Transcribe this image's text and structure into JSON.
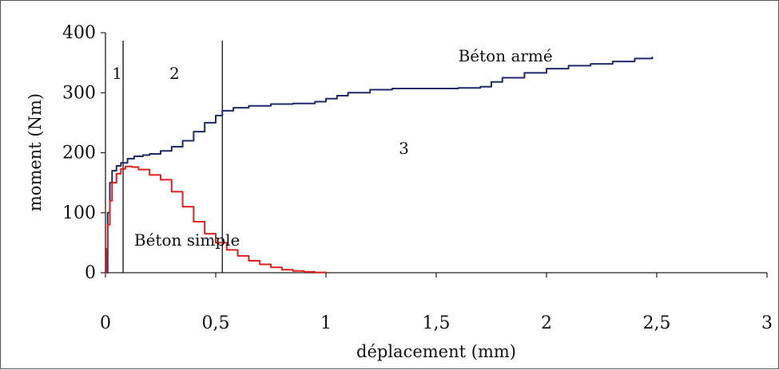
{
  "chart_data": {
    "type": "line",
    "xlabel": "déplacement (mm)",
    "ylabel": "moment (Nm)",
    "xlim": [
      0,
      3
    ],
    "ylim": [
      0,
      400
    ],
    "x_ticks": [
      "0",
      "0,5",
      "1",
      "1,5",
      "2",
      "2,5",
      "3"
    ],
    "y_ticks": [
      "0",
      "100",
      "200",
      "300",
      "400"
    ],
    "grid": false,
    "vertical_lines": [
      0.08,
      0.53
    ],
    "zone_labels": [
      {
        "text": "1",
        "x": 0.03,
        "y": 323
      },
      {
        "text": "2",
        "x": 0.29,
        "y": 323
      },
      {
        "text": "3",
        "x": 1.33,
        "y": 198
      }
    ],
    "series": [
      {
        "name": "Béton armé",
        "color": "#1f2a66",
        "label_at": {
          "x": 1.6,
          "y": 352
        },
        "x": [
          0,
          0.01,
          0.02,
          0.03,
          0.05,
          0.07,
          0.1,
          0.13,
          0.17,
          0.2,
          0.25,
          0.3,
          0.35,
          0.4,
          0.45,
          0.5,
          0.53,
          0.58,
          0.65,
          0.75,
          0.85,
          0.95,
          1.0,
          1.05,
          1.1,
          1.2,
          1.3,
          1.4,
          1.5,
          1.6,
          1.7,
          1.75,
          1.8,
          1.9,
          2.0,
          2.1,
          2.2,
          2.3,
          2.4,
          2.48
        ],
        "y": [
          0,
          100,
          150,
          170,
          178,
          183,
          190,
          194,
          196,
          198,
          203,
          210,
          220,
          235,
          250,
          262,
          270,
          275,
          278,
          281,
          282,
          285,
          290,
          295,
          300,
          305,
          307,
          307,
          307,
          308,
          310,
          318,
          325,
          333,
          340,
          345,
          348,
          352,
          357,
          360
        ]
      },
      {
        "name": "Béton simple",
        "color": "#e02020",
        "label_at": {
          "x": 0.13,
          "y": 45
        },
        "x": [
          0,
          0.005,
          0.01,
          0.02,
          0.03,
          0.05,
          0.07,
          0.09,
          0.12,
          0.15,
          0.2,
          0.25,
          0.3,
          0.35,
          0.4,
          0.45,
          0.5,
          0.55,
          0.6,
          0.65,
          0.7,
          0.75,
          0.8,
          0.85,
          0.9,
          0.95,
          1.0
        ],
        "y": [
          0,
          40,
          80,
          120,
          150,
          165,
          173,
          177,
          176,
          172,
          163,
          155,
          135,
          110,
          85,
          65,
          50,
          38,
          28,
          20,
          14,
          9,
          5,
          3,
          1.5,
          0.5,
          0
        ]
      }
    ]
  }
}
